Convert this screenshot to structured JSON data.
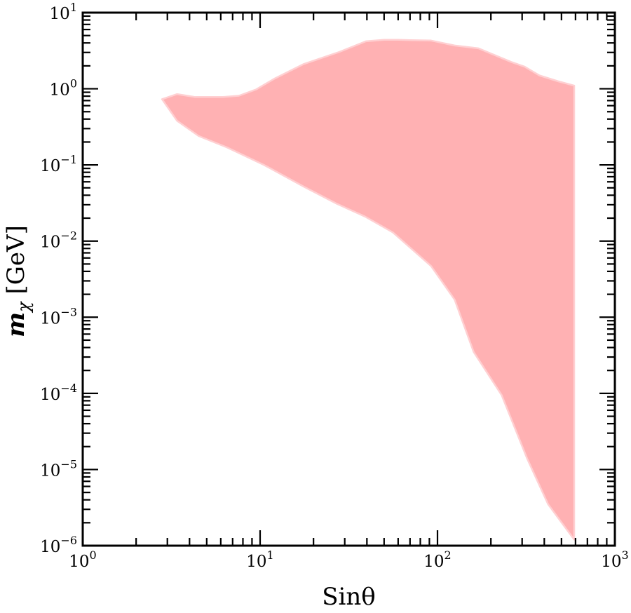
{
  "chart_data": {
    "type": "area",
    "title": "",
    "xlabel": "Sinθ",
    "ylabel": "mχ [GeV]",
    "x_scale": "log",
    "y_scale": "log",
    "xlim": [
      1,
      1000
    ],
    "ylim": [
      1e-06,
      10
    ],
    "grid": false,
    "legend": "none",
    "x_tick_labels": [
      {
        "base": "10",
        "exp": "0"
      },
      {
        "base": "10",
        "exp": "1"
      },
      {
        "base": "10",
        "exp": "2"
      },
      {
        "base": "10",
        "exp": "3"
      }
    ],
    "y_tick_labels": [
      {
        "base": "10",
        "exp": "−6"
      },
      {
        "base": "10",
        "exp": "−5"
      },
      {
        "base": "10",
        "exp": "−4"
      },
      {
        "base": "10",
        "exp": "−3"
      },
      {
        "base": "10",
        "exp": "−2"
      },
      {
        "base": "10",
        "exp": "−1"
      },
      {
        "base": "10",
        "exp": "0"
      },
      {
        "base": "10",
        "exp": "1"
      }
    ],
    "region": {
      "fill_color": "#ffb1b3",
      "edge_color": "#ffd0d2",
      "upper_boundary": [
        [
          2.8,
          0.73
        ],
        [
          3.4,
          0.85
        ],
        [
          4.3,
          0.78
        ],
        [
          6.2,
          0.78
        ],
        [
          7.6,
          0.81
        ],
        [
          9.5,
          0.98
        ],
        [
          12.0,
          1.35
        ],
        [
          17.5,
          2.1
        ],
        [
          28.0,
          3.05
        ],
        [
          39.5,
          4.2
        ],
        [
          50.0,
          4.4
        ],
        [
          60.0,
          4.4
        ],
        [
          70.0,
          4.35
        ],
        [
          92.0,
          4.3
        ],
        [
          125.0,
          3.7
        ],
        [
          170.0,
          3.4
        ],
        [
          260.0,
          2.25
        ],
        [
          310.0,
          1.95
        ],
        [
          375.0,
          1.5
        ],
        [
          480.0,
          1.25
        ],
        [
          590.0,
          1.1
        ]
      ],
      "lower_boundary": [
        [
          590.0,
          1.2e-06
        ],
        [
          420.0,
          3.5e-06
        ],
        [
          320.0,
          1.4e-05
        ],
        [
          230.0,
          9.5e-05
        ],
        [
          160.0,
          0.00035
        ],
        [
          125.0,
          0.0017
        ],
        [
          92.0,
          0.0047
        ],
        [
          56.0,
          0.013
        ],
        [
          39.0,
          0.021
        ],
        [
          27.0,
          0.031
        ],
        [
          17.6,
          0.052
        ],
        [
          10.5,
          0.1
        ],
        [
          6.5,
          0.17
        ],
        [
          4.5,
          0.24
        ],
        [
          3.4,
          0.38
        ],
        [
          2.8,
          0.73
        ]
      ]
    }
  }
}
